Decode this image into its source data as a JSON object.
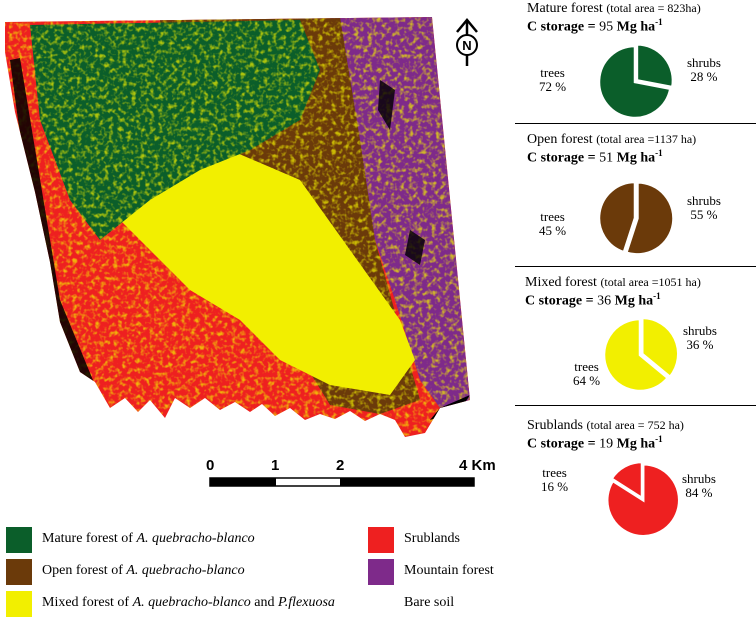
{
  "colors": {
    "mature_forest": "#0b5e2a",
    "open_forest": "#6b3a0a",
    "mixed_forest": "#f2ef00",
    "srublands": "#ee2020",
    "mountain_forest": "#7e2a8a",
    "bare_soil": "#ffffff"
  },
  "north_arrow_label": "N",
  "scale_bar": {
    "labels": [
      "0",
      "1",
      "2",
      "4 Km"
    ],
    "ticks_km": [
      0,
      1,
      2,
      4
    ]
  },
  "panels": [
    {
      "title": "Mature forest",
      "area": "(total area = 823ha)",
      "c_label": "C storage =",
      "c_value": "95",
      "c_unit": "Mg ha",
      "c_exp": "-1",
      "trees_label": "trees",
      "trees_pct": "72 %",
      "shrubs_label": "shrubs",
      "shrubs_pct": "28 %",
      "trees_value": 72,
      "shrubs_value": 28,
      "color": "#0b5e2a"
    },
    {
      "title": "Open forest",
      "area": "(total area =1137 ha)",
      "c_label": "C storage =",
      "c_value": "51",
      "c_unit": "Mg ha",
      "c_exp": "-1",
      "trees_label": "trees",
      "trees_pct": "45 %",
      "shrubs_label": "shrubs",
      "shrubs_pct": "55 %",
      "trees_value": 45,
      "shrubs_value": 55,
      "color": "#6b3a0a"
    },
    {
      "title": "Mixed forest",
      "area": "(total area =1051 ha)",
      "c_label": "C storage =",
      "c_value": "36",
      "c_unit": "Mg ha",
      "c_exp": "-1",
      "trees_label": "trees",
      "trees_pct": "64 %",
      "shrubs_label": "shrubs",
      "shrubs_pct": "36 %",
      "trees_value": 64,
      "shrubs_value": 36,
      "color": "#f2ef00"
    },
    {
      "title": "Srublands",
      "area": "(total area = 752 ha)",
      "c_label": "C storage =",
      "c_value": "19",
      "c_unit": "Mg ha",
      "c_exp": "-1",
      "trees_label": "trees",
      "trees_pct": "16 %",
      "shrubs_label": "shrubs",
      "shrubs_pct": "84 %",
      "trees_value": 16,
      "shrubs_value": 84,
      "color": "#ee2020"
    }
  ],
  "legend": {
    "mature_pre": "Mature forest of ",
    "mature_species": "A. quebracho-blanco",
    "open_pre": "Open forest of ",
    "open_species": "A. quebracho-blanco",
    "mixed_pre": "Mixed forest of ",
    "mixed_species": "A. quebracho-blanco",
    "mixed_and": " and ",
    "mixed_species2": "P.flexuosa",
    "srublands": "Srublands",
    "mountain": "Mountain forest",
    "bare": "Bare soil"
  }
}
